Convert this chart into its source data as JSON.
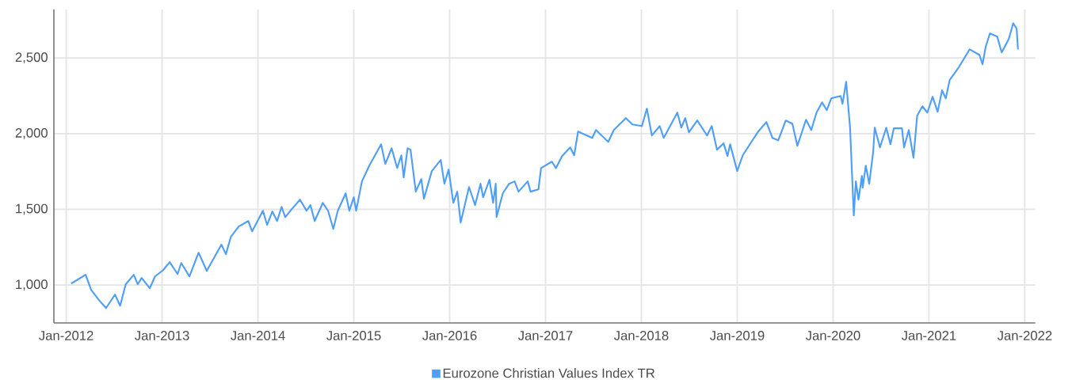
{
  "chart_data": {
    "type": "line",
    "x": [
      "2012-01-20",
      "2012-03-15",
      "2012-04-05",
      "2012-05-05",
      "2012-06-01",
      "2012-07-05",
      "2012-07-25",
      "2012-08-15",
      "2012-09-15",
      "2012-09-30",
      "2012-10-15",
      "2012-11-15",
      "2012-12-05",
      "2013-01-05",
      "2013-01-30",
      "2013-03-01",
      "2013-03-15",
      "2013-04-15",
      "2013-05-20",
      "2013-06-20",
      "2013-08-15",
      "2013-09-01",
      "2013-09-20",
      "2013-10-20",
      "2013-11-25",
      "2013-12-10",
      "2014-01-20",
      "2014-02-05",
      "2014-02-25",
      "2014-03-15",
      "2014-04-01",
      "2014-04-15",
      "2014-05-10",
      "2014-06-10",
      "2014-07-05",
      "2014-07-20",
      "2014-08-05",
      "2014-09-05",
      "2014-09-25",
      "2014-10-15",
      "2014-11-01",
      "2014-12-01",
      "2014-12-15",
      "2015-01-01",
      "2015-01-10",
      "2015-02-01",
      "2015-03-01",
      "2015-04-15",
      "2015-05-01",
      "2015-05-25",
      "2015-06-15",
      "2015-07-01",
      "2015-07-10",
      "2015-07-25",
      "2015-08-05",
      "2015-08-25",
      "2015-09-15",
      "2015-09-25",
      "2015-10-25",
      "2015-11-28",
      "2015-12-12",
      "2015-12-28",
      "2016-01-15",
      "2016-01-30",
      "2016-02-12",
      "2016-03-15",
      "2016-04-07",
      "2016-04-28",
      "2016-05-08",
      "2016-06-01",
      "2016-06-15",
      "2016-06-25",
      "2016-06-28",
      "2016-07-22",
      "2016-08-15",
      "2016-09-05",
      "2016-09-20",
      "2016-10-25",
      "2016-11-05",
      "2016-12-05",
      "2016-12-15",
      "2017-01-25",
      "2017-02-10",
      "2017-03-05",
      "2017-04-05",
      "2017-04-20",
      "2017-05-05",
      "2017-06-28",
      "2017-07-12",
      "2017-08-28",
      "2017-09-18",
      "2017-11-03",
      "2017-11-28",
      "2018-01-03",
      "2018-01-22",
      "2018-02-10",
      "2018-03-12",
      "2018-03-27",
      "2018-05-18",
      "2018-06-02",
      "2018-06-17",
      "2018-07-01",
      "2018-08-02",
      "2018-09-08",
      "2018-09-26",
      "2018-10-16",
      "2018-11-10",
      "2018-11-25",
      "2018-12-05",
      "2019-01-01",
      "2019-01-22",
      "2019-02-24",
      "2019-03-22",
      "2019-04-22",
      "2019-05-15",
      "2019-06-06",
      "2019-07-05",
      "2019-07-30",
      "2019-08-18",
      "2019-09-20",
      "2019-10-10",
      "2019-10-30",
      "2019-11-20",
      "2019-12-08",
      "2019-12-25",
      "2020-01-30",
      "2020-02-06",
      "2020-02-20",
      "2020-03-06",
      "2020-03-20",
      "2020-03-28",
      "2020-04-07",
      "2020-04-20",
      "2020-04-23",
      "2020-05-05",
      "2020-05-18",
      "2020-06-02",
      "2020-06-08",
      "2020-06-28",
      "2020-07-22",
      "2020-08-07",
      "2020-08-20",
      "2020-09-20",
      "2020-09-28",
      "2020-10-16",
      "2020-11-03",
      "2020-11-17",
      "2020-12-07",
      "2020-12-26",
      "2021-01-15",
      "2021-02-03",
      "2021-02-20",
      "2021-03-06",
      "2021-03-21",
      "2021-04-26",
      "2021-06-05",
      "2021-07-12",
      "2021-07-24",
      "2021-08-05",
      "2021-08-21",
      "2021-09-18",
      "2021-10-05",
      "2021-11-01",
      "2021-11-18",
      "2021-12-01",
      "2021-12-06"
    ],
    "series": [
      {
        "name": "Eurozone Christian Values Index TR",
        "color": "#4f9ef8",
        "values": [
          1010,
          1068,
          969,
          901,
          848,
          937,
          864,
          1005,
          1068,
          1005,
          1047,
          979,
          1057,
          1099,
          1152,
          1073,
          1146,
          1057,
          1214,
          1094,
          1267,
          1204,
          1319,
          1387,
          1423,
          1355,
          1491,
          1397,
          1486,
          1423,
          1517,
          1449,
          1502,
          1564,
          1491,
          1528,
          1423,
          1543,
          1491,
          1371,
          1491,
          1606,
          1491,
          1580,
          1491,
          1685,
          1789,
          1930,
          1800,
          1904,
          1773,
          1857,
          1711,
          1904,
          1894,
          1617,
          1700,
          1570,
          1753,
          1826,
          1669,
          1763,
          1543,
          1617,
          1413,
          1648,
          1528,
          1669,
          1580,
          1695,
          1543,
          1669,
          1449,
          1606,
          1669,
          1685,
          1617,
          1685,
          1617,
          1632,
          1773,
          1815,
          1773,
          1852,
          1909,
          1857,
          2014,
          1972,
          2024,
          1946,
          2024,
          2103,
          2061,
          2050,
          2165,
          1988,
          2050,
          1972,
          2139,
          2040,
          2103,
          2009,
          2087,
          1988,
          2050,
          1894,
          1936,
          1852,
          1930,
          1753,
          1857,
          1946,
          2014,
          2077,
          1972,
          1956,
          2087,
          2066,
          1920,
          2092,
          2024,
          2139,
          2207,
          2155,
          2233,
          2249,
          2197,
          2343,
          2035,
          1460,
          1685,
          1564,
          1721,
          1643,
          1789,
          1669,
          1878,
          2040,
          1909,
          2040,
          1930,
          2035,
          2035,
          1909,
          2024,
          1841,
          2118,
          2181,
          2139,
          2244,
          2144,
          2286,
          2233,
          2354,
          2442,
          2557,
          2521,
          2458,
          2573,
          2662,
          2641,
          2536,
          2625,
          2730,
          2693,
          2557
        ]
      }
    ],
    "xlim": [
      "2011-11-15",
      "2022-02-10"
    ],
    "ylim": [
      750,
      2820
    ],
    "xticks": [
      {
        "value": "2012-01-01",
        "label": "Jan-2012"
      },
      {
        "value": "2013-01-01",
        "label": "Jan-2013"
      },
      {
        "value": "2014-01-01",
        "label": "Jan-2014"
      },
      {
        "value": "2015-01-01",
        "label": "Jan-2015"
      },
      {
        "value": "2016-01-01",
        "label": "Jan-2016"
      },
      {
        "value": "2017-01-01",
        "label": "Jan-2017"
      },
      {
        "value": "2018-01-01",
        "label": "Jan-2018"
      },
      {
        "value": "2019-01-01",
        "label": "Jan-2019"
      },
      {
        "value": "2020-01-01",
        "label": "Jan-2020"
      },
      {
        "value": "2021-01-01",
        "label": "Jan-2021"
      },
      {
        "value": "2022-01-01",
        "label": "Jan-2022"
      }
    ],
    "yticks": [
      {
        "value": 1000,
        "label": "1,000"
      },
      {
        "value": 1500,
        "label": "1,500"
      },
      {
        "value": 2000,
        "label": "2,000"
      },
      {
        "value": 2500,
        "label": "2,500"
      }
    ],
    "grid": true,
    "legend": "bottom"
  }
}
